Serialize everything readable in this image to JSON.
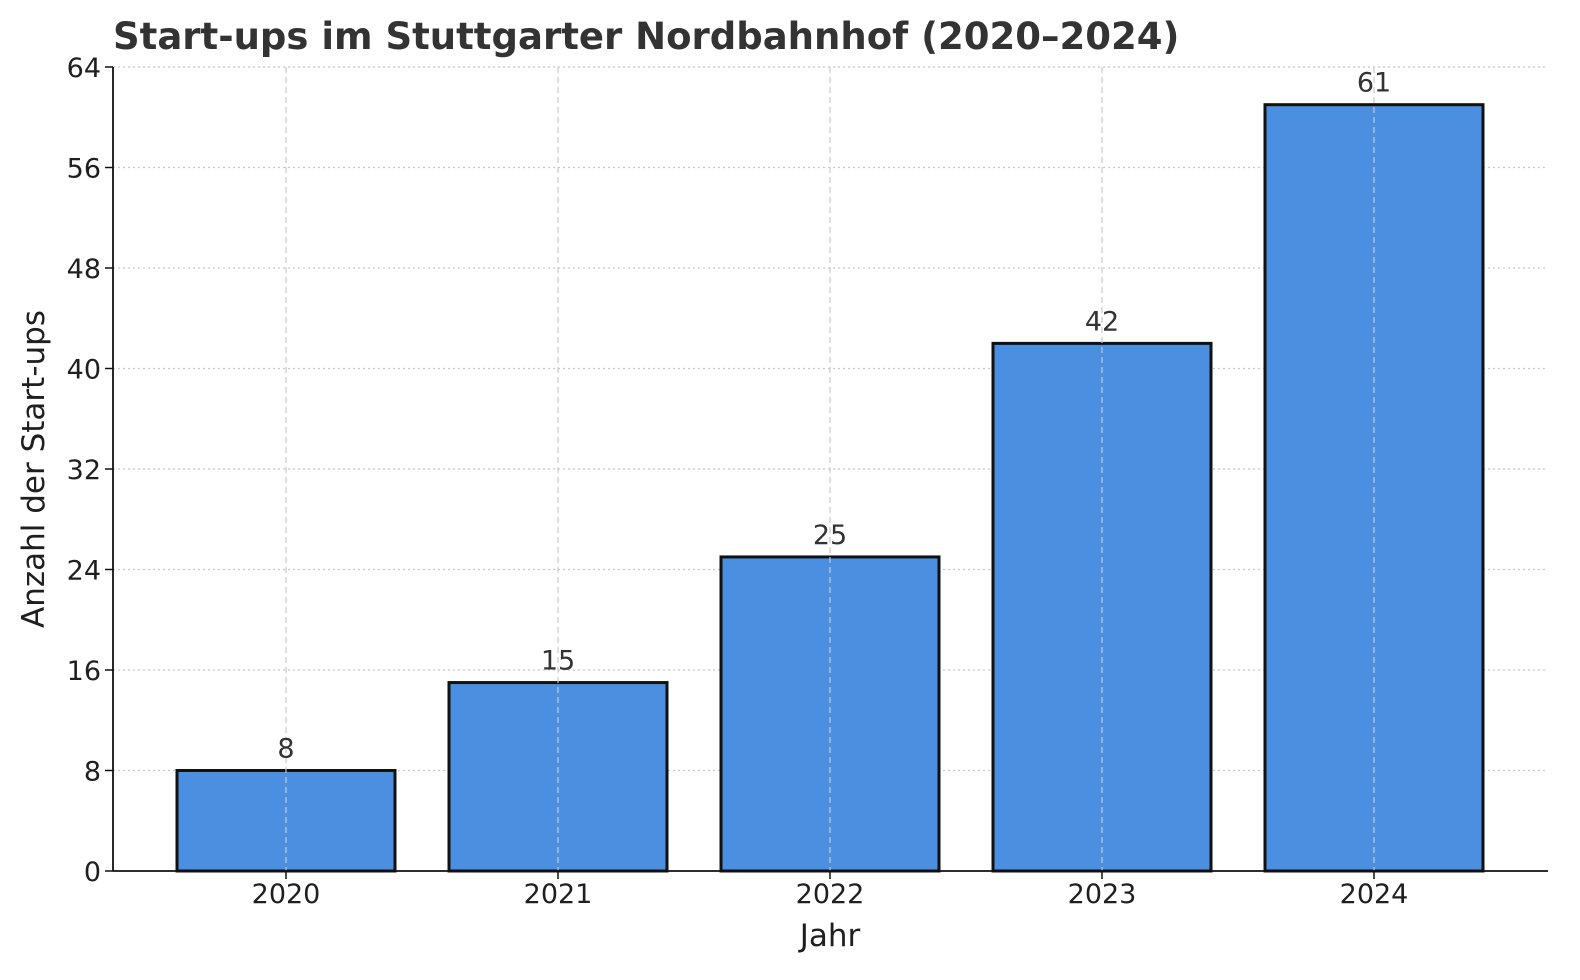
{
  "chart_data": {
    "type": "bar",
    "title": "Start-ups im Stuttgarter Nordbahnhof (2020–2024)",
    "xlabel": "Jahr",
    "ylabel": "Anzahl der Start-ups",
    "categories": [
      "2020",
      "2021",
      "2022",
      "2023",
      "2024"
    ],
    "values": [
      8,
      15,
      25,
      42,
      61
    ],
    "data_labels": [
      "8",
      "15",
      "25",
      "42",
      "61"
    ],
    "ylim": [
      0,
      64
    ],
    "yticks": [
      0,
      8,
      16,
      24,
      32,
      40,
      48,
      56,
      64
    ],
    "ytick_labels": [
      "0",
      "8",
      "16",
      "24",
      "32",
      "40",
      "48",
      "56",
      "64"
    ],
    "grid": true,
    "colors": {
      "bar": "#4a8fe0",
      "bar_edge": "#111111",
      "grid": "#c8c8c8",
      "axis": "#111111"
    }
  }
}
